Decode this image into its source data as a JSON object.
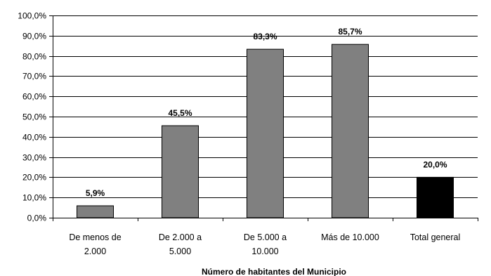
{
  "chart_data": {
    "type": "bar",
    "xlabel": "Número de habitantes del Municipio",
    "ylim": [
      0,
      100
    ],
    "y_tick_labels": [
      "0,0%",
      "10,0%",
      "20,0%",
      "30,0%",
      "40,0%",
      "50,0%",
      "60,0%",
      "70,0%",
      "80,0%",
      "90,0%",
      "100,0%"
    ],
    "grid": true,
    "categories": [
      [
        "De menos de",
        "2.000"
      ],
      [
        "De 2.000 a",
        "5.000"
      ],
      [
        "De 5.000 a",
        "10.000"
      ],
      [
        "Más de 10.000"
      ],
      [
        "Total general"
      ]
    ],
    "values": [
      5.9,
      45.5,
      83.3,
      85.7,
      20.0
    ],
    "data_labels": [
      "5,9%",
      "45,5%",
      "83,3%",
      "85,7%",
      "20,0%"
    ],
    "colors": [
      "#808080",
      "#808080",
      "#808080",
      "#808080",
      "#000000"
    ]
  }
}
